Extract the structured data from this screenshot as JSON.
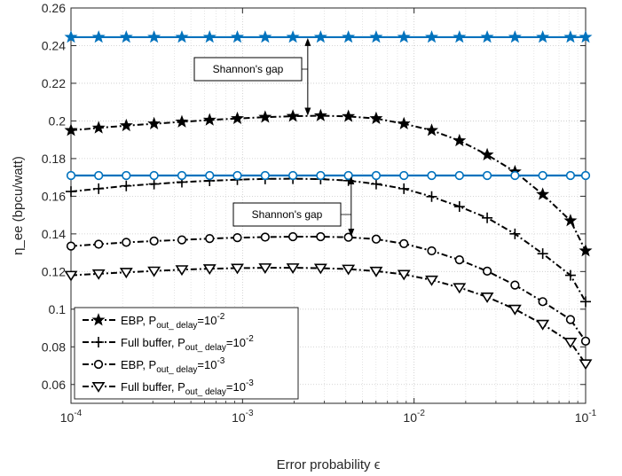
{
  "chart_data": {
    "type": "line",
    "xlabel": "Error probability ϵ",
    "ylabel": "η_ee (bpcu/watt)",
    "x_scale": "log",
    "xlim": [
      0.0001,
      0.1
    ],
    "ylim": [
      0.05,
      0.26
    ],
    "grid": true,
    "legend_position": "bottom-left",
    "x_tick_labels": [
      {
        "value": 0.0001,
        "base": "10",
        "exp": "-4"
      },
      {
        "value": 0.001,
        "base": "10",
        "exp": "-3"
      },
      {
        "value": 0.01,
        "base": "10",
        "exp": "-2"
      },
      {
        "value": 0.1,
        "base": "10",
        "exp": "-1"
      }
    ],
    "y_ticks": [
      0.06,
      0.08,
      0.1,
      0.12,
      0.14,
      0.16,
      0.18,
      0.2,
      0.22,
      0.24,
      0.26
    ],
    "y_tick_labels": [
      "0.06",
      "0.08",
      "0.1",
      "0.12",
      "0.14",
      "0.16",
      "0.18",
      "0.2",
      "0.22",
      "0.24",
      "0.26"
    ],
    "x": [
      0.0001,
      0.000145,
      0.00021,
      0.000305,
      0.000443,
      0.000643,
      0.000933,
      0.001355,
      0.001966,
      0.002853,
      0.004142,
      0.006012,
      0.008726,
      0.012666,
      0.018384,
      0.026684,
      0.038731,
      0.056218,
      0.081599,
      0.1
    ],
    "marker_x": [
      0.0001,
      0.000145,
      0.00021,
      0.000305,
      0.000443,
      0.000643,
      0.000933,
      0.001355,
      0.001966,
      0.002853,
      0.004142,
      0.006012,
      0.008726,
      0.012666,
      0.018384,
      0.026684,
      0.038731,
      0.056218,
      0.081599,
      0.1
    ],
    "series": [
      {
        "name_main": "EBP, P",
        "name_sub": "out_ delay",
        "name_eq": "=10",
        "name_sup": "-2",
        "color": "#000000",
        "style": "dashdot",
        "marker": "star",
        "values": [
          0.195,
          0.1963,
          0.1975,
          0.1985,
          0.1995,
          0.2005,
          0.2013,
          0.202,
          0.2025,
          0.2028,
          0.2024,
          0.2013,
          0.1985,
          0.195,
          0.1895,
          0.182,
          0.173,
          0.161,
          0.147,
          0.131
        ]
      },
      {
        "name_main": "Full buffer, P",
        "name_sub": "out_ delay",
        "name_eq": "=10",
        "name_sup": "-2",
        "color": "#000000",
        "style": "dashdot",
        "marker": "plus",
        "values": [
          0.1625,
          0.164,
          0.1655,
          0.1665,
          0.1675,
          0.1682,
          0.1688,
          0.1692,
          0.1693,
          0.1691,
          0.1683,
          0.1665,
          0.164,
          0.1598,
          0.1545,
          0.1485,
          0.14,
          0.1295,
          0.118,
          0.104
        ]
      },
      {
        "name_main": "EBP, P",
        "name_sub": "out_ delay",
        "name_eq": "=10",
        "name_sup": "-3",
        "color": "#000000",
        "style": "dashdot",
        "marker": "circle",
        "values": [
          0.1335,
          0.1345,
          0.1355,
          0.1362,
          0.1368,
          0.1375,
          0.138,
          0.1383,
          0.1385,
          0.1385,
          0.1382,
          0.1372,
          0.1348,
          0.131,
          0.1262,
          0.1202,
          0.1128,
          0.104,
          0.0945,
          0.083
        ]
      },
      {
        "name_main": "Full buffer, P",
        "name_sub": "out_ delay",
        "name_eq": "=10",
        "name_sup": "-3",
        "color": "#000000",
        "style": "dashdot",
        "marker": "triangle-down",
        "values": [
          0.118,
          0.1188,
          0.1196,
          0.1203,
          0.121,
          0.1215,
          0.1218,
          0.122,
          0.122,
          0.1218,
          0.1213,
          0.1202,
          0.1185,
          0.1155,
          0.1115,
          0.1065,
          0.1,
          0.092,
          0.0825,
          0.071
        ]
      },
      {
        "name_main": "",
        "color": "#0072BD",
        "style": "solid",
        "marker": "star",
        "values": [
          0.2445,
          0.2445,
          0.2445,
          0.2445,
          0.2445,
          0.2445,
          0.2445,
          0.2445,
          0.2445,
          0.2445,
          0.2445,
          0.2445,
          0.2445,
          0.2445,
          0.2445,
          0.2445,
          0.2445,
          0.2445,
          0.2445,
          0.2445
        ]
      },
      {
        "name_main": "",
        "color": "#0072BD",
        "style": "solid",
        "marker": "circle",
        "values": [
          0.171,
          0.171,
          0.171,
          0.171,
          0.171,
          0.171,
          0.171,
          0.171,
          0.171,
          0.171,
          0.171,
          0.171,
          0.171,
          0.171,
          0.171,
          0.171,
          0.171,
          0.171,
          0.171,
          0.171
        ]
      }
    ],
    "annotations": [
      {
        "text": "Shannon's gap",
        "arrow_x": 0.0024,
        "arrow_y_from": 0.2445,
        "arrow_y_to": 0.2028
      },
      {
        "text": "Shannon's gap",
        "arrow_x": 0.0043,
        "arrow_y_from": 0.171,
        "arrow_y_to": 0.1385
      }
    ]
  }
}
